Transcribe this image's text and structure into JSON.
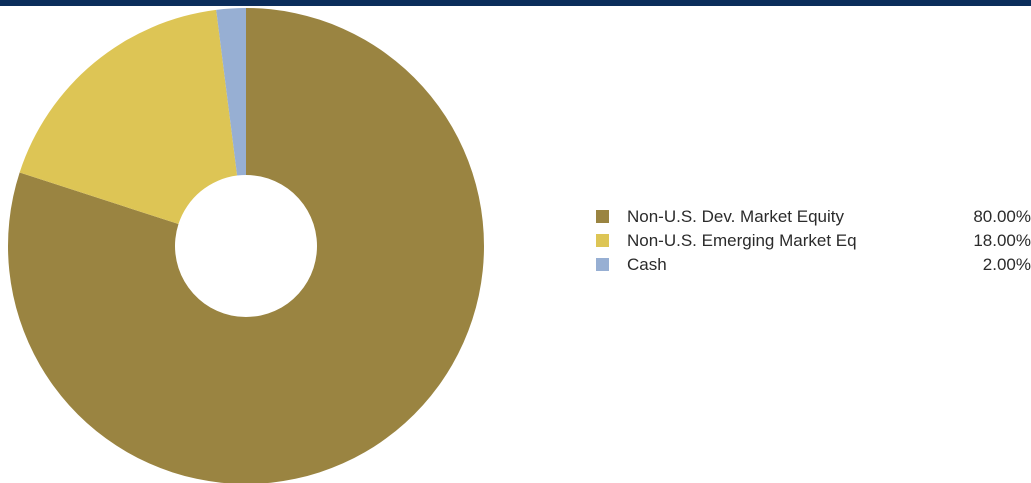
{
  "colors": {
    "header_bar": "#0b2d5b",
    "background": "#ffffff",
    "legend_text": "#2b2b2b"
  },
  "chart_data": {
    "type": "pie",
    "style": "donut",
    "start_angle_deg": 0,
    "direction": "clockwise",
    "legend_position": "right",
    "slices": [
      {
        "label": "Non-U.S. Dev. Market Equity",
        "value": 80.0,
        "display": "80.00%",
        "color": "#9a8441"
      },
      {
        "label": "Non-U.S. Emerging Market Eq",
        "value": 18.0,
        "display": "18.00%",
        "color": "#ddc555"
      },
      {
        "label": "Cash",
        "value": 2.0,
        "display": "2.00%",
        "color": "#97afd3"
      }
    ]
  }
}
